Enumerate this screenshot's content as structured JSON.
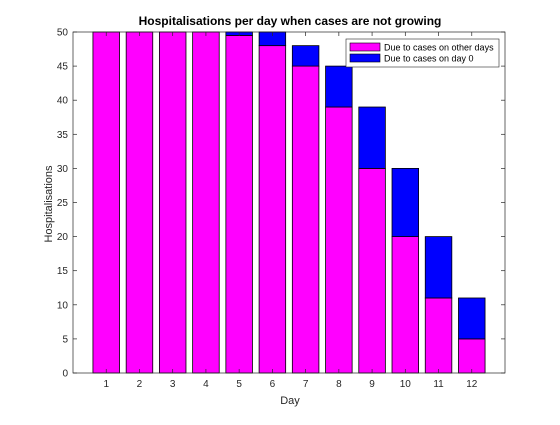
{
  "chart_data": {
    "type": "bar",
    "stacked": true,
    "title": "Hospitalisations per day when cases are not growing",
    "xlabel": "Day",
    "ylabel": "Hospitalisations",
    "categories": [
      "1",
      "2",
      "3",
      "4",
      "5",
      "6",
      "7",
      "8",
      "9",
      "10",
      "11",
      "12"
    ],
    "xlim": [
      0,
      13
    ],
    "ylim": [
      0,
      50
    ],
    "yticks": [
      0,
      5,
      10,
      15,
      20,
      25,
      30,
      35,
      40,
      45,
      50
    ],
    "grid": false,
    "legend_position": "top-right",
    "series": [
      {
        "name": "Due to cases on other days",
        "color": "#ff00ff",
        "values": [
          50,
          50,
          50,
          50,
          49.5,
          48,
          45,
          39,
          30,
          20,
          11,
          5
        ]
      },
      {
        "name": "Due to cases on day 0",
        "color": "#0000ff",
        "values": [
          0,
          0,
          0,
          0,
          0.5,
          2,
          3,
          6,
          9,
          10,
          9,
          6
        ]
      }
    ]
  }
}
